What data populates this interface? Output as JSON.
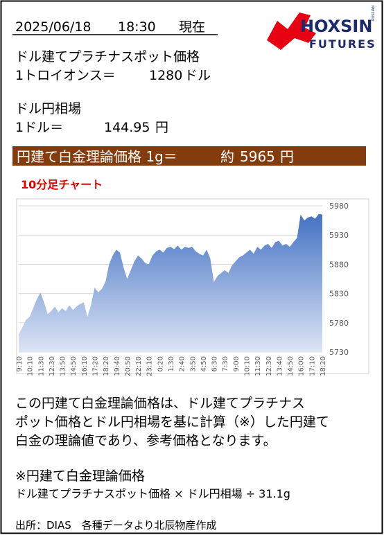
{
  "header": {
    "date": "2025/06/18",
    "time": "18:30",
    "status": "現在"
  },
  "logo": {
    "name": "HOXSIN",
    "sub": "FUTURES",
    "tag": "RUSSIAN"
  },
  "platinum": {
    "label": "ドル建てプラチナスポット価格",
    "unit_label": "1トロイオンス＝",
    "value": "1280",
    "unit": "ドル"
  },
  "fx": {
    "label": "ドル円相場",
    "unit_label": "1ドル＝",
    "value": "144.95",
    "unit": "円"
  },
  "banner": {
    "label": "円建て白金理論価格 1g＝",
    "prefix": "約",
    "value": "5965",
    "unit": "円"
  },
  "chart_data": {
    "type": "area",
    "title": "10分足チャート",
    "color": "#4472c4",
    "grid": true,
    "ylim": [
      5730,
      5980
    ],
    "yticks": [
      5730,
      5780,
      5830,
      5880,
      5930,
      5980
    ],
    "categories": [
      "9:10",
      null,
      null,
      "10:10",
      null,
      null,
      "11:30",
      null,
      null,
      "12:30",
      null,
      null,
      "13:50",
      null,
      null,
      "14:50",
      null,
      null,
      "16:10",
      null,
      null,
      "17:20",
      null,
      null,
      "18:20",
      null,
      null,
      "19:40",
      null,
      null,
      "20:50",
      null,
      null,
      "22:10",
      null,
      null,
      "23:10",
      null,
      null,
      "0:20",
      null,
      null,
      "1:30",
      null,
      null,
      "2:40",
      null,
      null,
      "3:50",
      null,
      null,
      "4:50",
      null,
      null,
      "6:30",
      null,
      null,
      "7:30",
      null,
      null,
      "9:00",
      null,
      null,
      "10:10",
      null,
      null,
      "11:30",
      null,
      null,
      "12:30",
      null,
      null,
      "13:40",
      null,
      null,
      "14:50",
      null,
      null,
      "16:00",
      null,
      null,
      "17:10",
      null,
      null,
      "18:20"
    ],
    "values": [
      5760,
      5772,
      5785,
      5790,
      5805,
      5820,
      5832,
      5815,
      5795,
      5800,
      5808,
      5798,
      5805,
      5800,
      5810,
      5802,
      5808,
      5812,
      5815,
      5790,
      5810,
      5840,
      5832,
      5838,
      5850,
      5880,
      5895,
      5905,
      5900,
      5875,
      5855,
      5870,
      5885,
      5895,
      5890,
      5882,
      5880,
      5895,
      5902,
      5905,
      5900,
      5908,
      5910,
      5906,
      5912,
      5905,
      5910,
      5908,
      5910,
      5902,
      5898,
      5895,
      5905,
      5890,
      5850,
      5860,
      5865,
      5870,
      5865,
      5878,
      5885,
      5892,
      5895,
      5900,
      5905,
      5898,
      5910,
      5905,
      5912,
      5915,
      5908,
      5918,
      5920,
      5912,
      5915,
      5910,
      5918,
      5925,
      5965,
      5955,
      5960,
      5962,
      5958,
      5966,
      5965
    ]
  },
  "description": {
    "lines": [
      "この円建て白金理論価格は、ドル建てプラチナス",
      "ポット価格とドル円相場を基に計算（※）した円建て",
      "白金の理論値であり、参考価格となります。"
    ]
  },
  "formula": {
    "title": "※円建て白金理論価格",
    "text": "ドル建てプラチナスポット価格 × ドル円相場 ÷ 31.1g"
  },
  "source": "出所：DIAS　各種データより北辰物産作成"
}
